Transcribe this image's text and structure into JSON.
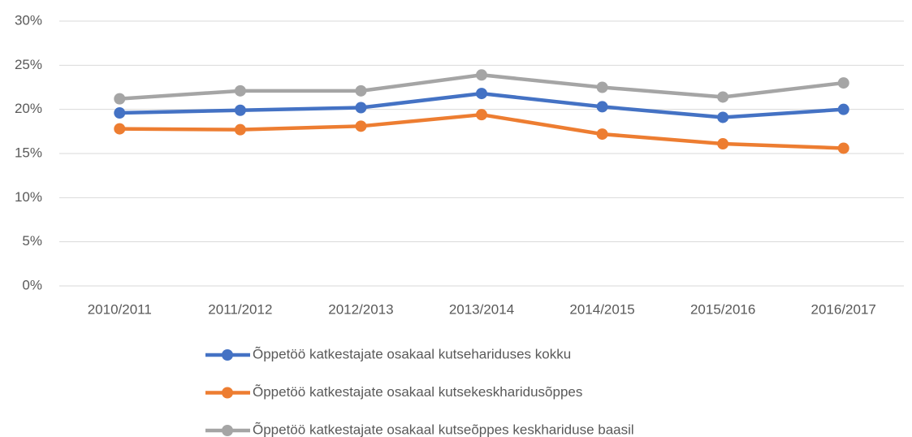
{
  "chart_data": {
    "type": "line",
    "categories": [
      "2010/2011",
      "2011/2012",
      "2012/2013",
      "2013/2014",
      "2014/2015",
      "2015/2016",
      "2016/2017"
    ],
    "series": [
      {
        "name": "Õppetöö katkestajate osakaal kutsehariduses kokku",
        "color": "#4472c4",
        "values": [
          19.6,
          19.9,
          20.2,
          21.8,
          20.3,
          19.1,
          20.0
        ]
      },
      {
        "name": "Õppetöö katkestajate osakaal kutsekeskharidusõppes",
        "color": "#ed7d31",
        "values": [
          17.8,
          17.7,
          18.1,
          19.4,
          17.2,
          16.1,
          15.6
        ]
      },
      {
        "name": "Õppetöö katkestajate osakaal kutseõppes keskhariduse baasil",
        "color": "#a5a5a5",
        "values": [
          21.2,
          22.1,
          22.1,
          23.9,
          22.5,
          21.4,
          23.0
        ]
      }
    ],
    "ylim": [
      0,
      30
    ],
    "yticks": [
      {
        "value": 0,
        "label": "0%"
      },
      {
        "value": 5,
        "label": "5%"
      },
      {
        "value": 10,
        "label": "10%"
      },
      {
        "value": 15,
        "label": "15%"
      },
      {
        "value": 20,
        "label": "20%"
      },
      {
        "value": 25,
        "label": "25%"
      },
      {
        "value": 30,
        "label": "30%"
      }
    ],
    "grid": true,
    "legend": "bottom"
  }
}
